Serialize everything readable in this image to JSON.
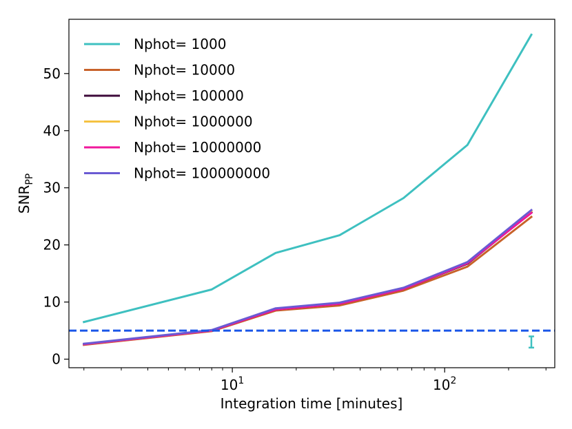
{
  "chart_data": {
    "type": "line",
    "xlabel": "Integration time [minutes]",
    "ylabel_main": "SNR",
    "ylabel_sub": "PP",
    "xscale": "log",
    "xlim": [
      1.7,
      330
    ],
    "ylim": [
      -1.5,
      59.5
    ],
    "x_ticks": [
      {
        "value": 10,
        "base": "10",
        "exp": "1"
      },
      {
        "value": 100,
        "base": "10",
        "exp": "2"
      }
    ],
    "y_ticks": [
      0,
      10,
      20,
      30,
      40,
      50
    ],
    "grid": false,
    "legend_position": "upper-left",
    "x": [
      2,
      8,
      16,
      32,
      64,
      128,
      256
    ],
    "series": [
      {
        "name": "Nphot= 1000",
        "color": "#3ec0c0",
        "values": [
          6.5,
          12.2,
          18.6,
          21.7,
          28.2,
          37.5,
          56.8
        ]
      },
      {
        "name": "Nphot= 10000",
        "color": "#c8622a",
        "values": [
          2.5,
          4.9,
          8.5,
          9.4,
          12.0,
          16.2,
          24.9
        ]
      },
      {
        "name": "Nphot= 100000",
        "color": "#3d0a3a",
        "values": [
          2.6,
          5.0,
          8.7,
          9.7,
          12.3,
          16.7,
          25.7
        ]
      },
      {
        "name": "Nphot= 1000000",
        "color": "#f5c242",
        "values": [
          2.6,
          5.0,
          8.8,
          9.8,
          12.4,
          16.9,
          25.9
        ]
      },
      {
        "name": "Nphot= 10000000",
        "color": "#f0179c",
        "values": [
          2.6,
          5.0,
          8.7,
          9.7,
          12.3,
          16.8,
          25.6
        ]
      },
      {
        "name": "Nphot= 100000000",
        "color": "#6a5ad3",
        "values": [
          2.7,
          5.1,
          8.9,
          9.9,
          12.5,
          17.0,
          26.1
        ]
      }
    ],
    "threshold": {
      "value": 5,
      "color": "#1a56e8"
    },
    "errorbar": {
      "x": 256,
      "low": 2.5,
      "high": 3.5,
      "color": "#3ec0c0"
    }
  }
}
